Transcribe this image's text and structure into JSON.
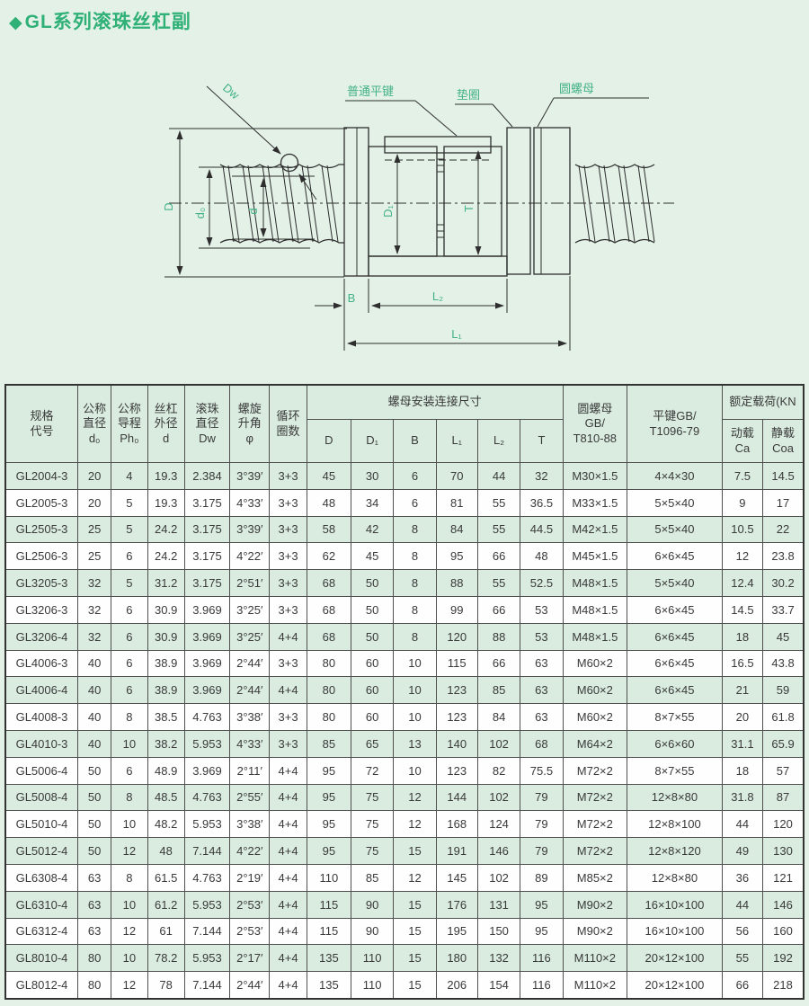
{
  "page": {
    "bullet": "◆",
    "title": "GL系列滚珠丝杠副"
  },
  "diagram": {
    "callouts": {
      "flat_key": "普通平键",
      "washer": "垫圈",
      "round_nut": "圆螺母"
    },
    "dims": {
      "D": "D",
      "d0": "d₀",
      "d": "d",
      "Dw": "Dw",
      "D1": "D₁",
      "T": "T",
      "B": "B",
      "L2": "L₂",
      "L1": "L₁"
    }
  },
  "table": {
    "headers": {
      "spec": "规格\n代号",
      "d0": "公称\n直径\nd₀",
      "ph0": "公称\n导程\nPh₀",
      "d": "丝杠\n外径\nd",
      "dw": "滚珠\n直径\nDw",
      "phi": "螺旋\n升角\nφ",
      "circuits": "循环\n圈数",
      "nut_mount": "螺母安装连接尺寸",
      "sub": [
        "D",
        "D₁",
        "B",
        "L₁",
        "L₂",
        "T"
      ],
      "round_nut": "圆螺母\nGB/\nT810-88",
      "flat_key": "平键GB/\nT1096-79",
      "rated_load": "额定载荷(KN",
      "dynamic": "动载\nCa",
      "static": "静载\nCoa"
    },
    "rows": [
      [
        "GL2004-3",
        "20",
        "4",
        "19.3",
        "2.384",
        "3°39′",
        "3+3",
        "45",
        "30",
        "6",
        "70",
        "44",
        "32",
        "M30×1.5",
        "4×4×30",
        "7.5",
        "14.5"
      ],
      [
        "GL2005-3",
        "20",
        "5",
        "19.3",
        "3.175",
        "4°33′",
        "3+3",
        "48",
        "34",
        "6",
        "81",
        "55",
        "36.5",
        "M33×1.5",
        "5×5×40",
        "9",
        "17"
      ],
      [
        "GL2505-3",
        "25",
        "5",
        "24.2",
        "3.175",
        "3°39′",
        "3+3",
        "58",
        "42",
        "8",
        "84",
        "55",
        "44.5",
        "M42×1.5",
        "5×5×40",
        "10.5",
        "22"
      ],
      [
        "GL2506-3",
        "25",
        "6",
        "24.2",
        "3.175",
        "4°22′",
        "3+3",
        "62",
        "45",
        "8",
        "95",
        "66",
        "48",
        "M45×1.5",
        "6×6×45",
        "12",
        "23.8"
      ],
      [
        "GL3205-3",
        "32",
        "5",
        "31.2",
        "3.175",
        "2°51′",
        "3+3",
        "68",
        "50",
        "8",
        "88",
        "55",
        "52.5",
        "M48×1.5",
        "5×5×40",
        "12.4",
        "30.2"
      ],
      [
        "GL3206-3",
        "32",
        "6",
        "30.9",
        "3.969",
        "3°25′",
        "3+3",
        "68",
        "50",
        "8",
        "99",
        "66",
        "53",
        "M48×1.5",
        "6×6×45",
        "14.5",
        "33.7"
      ],
      [
        "GL3206-4",
        "32",
        "6",
        "30.9",
        "3.969",
        "3°25′",
        "4+4",
        "68",
        "50",
        "8",
        "120",
        "88",
        "53",
        "M48×1.5",
        "6×6×45",
        "18",
        "45"
      ],
      [
        "GL4006-3",
        "40",
        "6",
        "38.9",
        "3.969",
        "2°44′",
        "3+3",
        "80",
        "60",
        "10",
        "115",
        "66",
        "63",
        "M60×2",
        "6×6×45",
        "16.5",
        "43.8"
      ],
      [
        "GL4006-4",
        "40",
        "6",
        "38.9",
        "3.969",
        "2°44′",
        "4+4",
        "80",
        "60",
        "10",
        "123",
        "85",
        "63",
        "M60×2",
        "6×6×45",
        "21",
        "59"
      ],
      [
        "GL4008-3",
        "40",
        "8",
        "38.5",
        "4.763",
        "3°38′",
        "3+3",
        "80",
        "60",
        "10",
        "123",
        "84",
        "63",
        "M60×2",
        "8×7×55",
        "20",
        "61.8"
      ],
      [
        "GL4010-3",
        "40",
        "10",
        "38.2",
        "5.953",
        "4°33′",
        "3+3",
        "85",
        "65",
        "13",
        "140",
        "102",
        "68",
        "M64×2",
        "6×6×60",
        "31.1",
        "65.9"
      ],
      [
        "GL5006-4",
        "50",
        "6",
        "48.9",
        "3.969",
        "2°11′",
        "4+4",
        "95",
        "72",
        "10",
        "123",
        "82",
        "75.5",
        "M72×2",
        "8×7×55",
        "18",
        "57"
      ],
      [
        "GL5008-4",
        "50",
        "8",
        "48.5",
        "4.763",
        "2°55′",
        "4+4",
        "95",
        "75",
        "12",
        "144",
        "102",
        "79",
        "M72×2",
        "12×8×80",
        "31.8",
        "87"
      ],
      [
        "GL5010-4",
        "50",
        "10",
        "48.2",
        "5.953",
        "3°38′",
        "4+4",
        "95",
        "75",
        "12",
        "168",
        "124",
        "79",
        "M72×2",
        "12×8×100",
        "44",
        "120"
      ],
      [
        "GL5012-4",
        "50",
        "12",
        "48",
        "7.144",
        "4°22′",
        "4+4",
        "95",
        "75",
        "15",
        "191",
        "146",
        "79",
        "M72×2",
        "12×8×120",
        "49",
        "130"
      ],
      [
        "GL6308-4",
        "63",
        "8",
        "61.5",
        "4.763",
        "2°19′",
        "4+4",
        "110",
        "85",
        "12",
        "145",
        "102",
        "89",
        "M85×2",
        "12×8×80",
        "36",
        "121"
      ],
      [
        "GL6310-4",
        "63",
        "10",
        "61.2",
        "5.953",
        "2°53′",
        "4+4",
        "115",
        "90",
        "15",
        "176",
        "131",
        "95",
        "M90×2",
        "16×10×100",
        "44",
        "146"
      ],
      [
        "GL6312-4",
        "63",
        "12",
        "61",
        "7.144",
        "2°53′",
        "4+4",
        "115",
        "90",
        "15",
        "195",
        "150",
        "95",
        "M90×2",
        "16×10×100",
        "56",
        "160"
      ],
      [
        "GL8010-4",
        "80",
        "10",
        "78.2",
        "5.953",
        "2°17′",
        "4+4",
        "135",
        "110",
        "15",
        "180",
        "132",
        "116",
        "M110×2",
        "20×12×100",
        "55",
        "192"
      ],
      [
        "GL8012-4",
        "80",
        "12",
        "78",
        "7.144",
        "2°44′",
        "4+4",
        "135",
        "110",
        "15",
        "206",
        "154",
        "116",
        "M110×2",
        "20×12×100",
        "66",
        "218"
      ]
    ]
  }
}
